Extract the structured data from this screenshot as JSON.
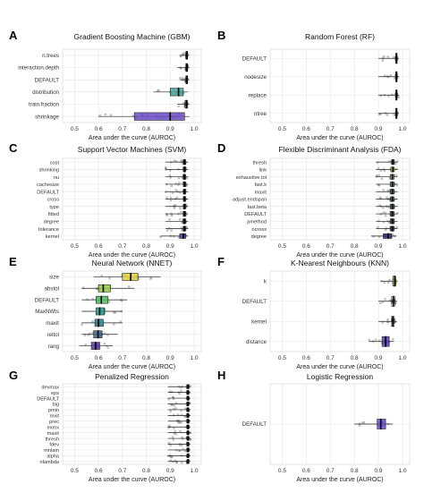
{
  "figure": {
    "xlabel": "Area under the curve (AUROC)",
    "colors": {
      "tick_color": "#333333",
      "grid_color": "#e6e6e6",
      "point_color": "#555555",
      "median_color": "#000000"
    }
  },
  "chart_data": [
    {
      "letter": "A",
      "type": "boxplot",
      "title": "Gradient Boosting Machine (GBM)",
      "xlabel": "Area under the curve (AUROC)",
      "xlim": [
        0.45,
        1.03
      ],
      "xticks": [
        0.5,
        0.6,
        0.7,
        0.8,
        0.9,
        1.0
      ],
      "grid": true,
      "categories": [
        "n.trees",
        "interaction.depth",
        "DEFAULT",
        "distribution",
        "train.fraction",
        "shrinkage"
      ],
      "boxes": [
        {
          "q1": 0.965,
          "median": 0.97,
          "q3": 0.973,
          "min": 0.94,
          "max": 0.98,
          "color": "#ffffff"
        },
        {
          "q1": 0.965,
          "median": 0.97,
          "q3": 0.973,
          "min": 0.93,
          "max": 0.98,
          "color": "#ffffff"
        },
        {
          "q1": 0.965,
          "median": 0.97,
          "q3": 0.973,
          "min": 0.94,
          "max": 0.98,
          "color": "#ffffff"
        },
        {
          "q1": 0.9,
          "median": 0.935,
          "q3": 0.955,
          "min": 0.83,
          "max": 0.975,
          "color": "#4aa6a1"
        },
        {
          "q1": 0.962,
          "median": 0.968,
          "q3": 0.973,
          "min": 0.93,
          "max": 0.98,
          "color": "#ffffff"
        },
        {
          "q1": 0.75,
          "median": 0.9,
          "q3": 0.96,
          "min": 0.6,
          "max": 0.98,
          "color": "#6b4bc4"
        }
      ]
    },
    {
      "letter": "B",
      "type": "boxplot",
      "title": "Random Forest (RF)",
      "xlabel": "Area under the curve (AUROC)",
      "xlim": [
        0.45,
        1.03
      ],
      "xticks": [
        0.5,
        0.6,
        0.7,
        0.8,
        0.9,
        1.0
      ],
      "grid": true,
      "categories": [
        "DEFAULT",
        "nodesize",
        "replace",
        "ntree"
      ],
      "boxes": [
        {
          "q1": 0.972,
          "median": 0.975,
          "q3": 0.978,
          "min": 0.9,
          "max": 0.985,
          "color": "#ffffff"
        },
        {
          "q1": 0.972,
          "median": 0.975,
          "q3": 0.978,
          "min": 0.9,
          "max": 0.985,
          "color": "#ffffff"
        },
        {
          "q1": 0.972,
          "median": 0.975,
          "q3": 0.978,
          "min": 0.9,
          "max": 0.985,
          "color": "#ffffff"
        },
        {
          "q1": 0.972,
          "median": 0.975,
          "q3": 0.978,
          "min": 0.9,
          "max": 0.985,
          "color": "#ffffff"
        }
      ]
    },
    {
      "letter": "C",
      "type": "boxplot",
      "title": "Support Vector Machines (SVM)",
      "xlabel": "Area under the curve (AUROC)",
      "xlim": [
        0.45,
        1.03
      ],
      "xticks": [
        0.5,
        0.6,
        0.7,
        0.8,
        0.9,
        1.0
      ],
      "grid": true,
      "categories": [
        "cost",
        "shrinking",
        "nu",
        "cachesize",
        "DEFAULT",
        "cross",
        "type",
        "fitted",
        "degree",
        "tolerance",
        "kernel"
      ],
      "boxes": [
        {
          "q1": 0.955,
          "median": 0.96,
          "q3": 0.965,
          "min": 0.88,
          "max": 0.975,
          "color": "#ffffff"
        },
        {
          "q1": 0.955,
          "median": 0.96,
          "q3": 0.965,
          "min": 0.88,
          "max": 0.975,
          "color": "#ffffff"
        },
        {
          "q1": 0.955,
          "median": 0.96,
          "q3": 0.965,
          "min": 0.88,
          "max": 0.975,
          "color": "#ffffff"
        },
        {
          "q1": 0.955,
          "median": 0.96,
          "q3": 0.965,
          "min": 0.88,
          "max": 0.975,
          "color": "#ffffff"
        },
        {
          "q1": 0.955,
          "median": 0.96,
          "q3": 0.965,
          "min": 0.88,
          "max": 0.975,
          "color": "#ffffff"
        },
        {
          "q1": 0.955,
          "median": 0.96,
          "q3": 0.965,
          "min": 0.88,
          "max": 0.975,
          "color": "#ffffff"
        },
        {
          "q1": 0.955,
          "median": 0.96,
          "q3": 0.965,
          "min": 0.88,
          "max": 0.975,
          "color": "#ffffff"
        },
        {
          "q1": 0.955,
          "median": 0.96,
          "q3": 0.965,
          "min": 0.88,
          "max": 0.975,
          "color": "#ffffff"
        },
        {
          "q1": 0.955,
          "median": 0.96,
          "q3": 0.965,
          "min": 0.88,
          "max": 0.975,
          "color": "#ffffff"
        },
        {
          "q1": 0.955,
          "median": 0.96,
          "q3": 0.965,
          "min": 0.88,
          "max": 0.975,
          "color": "#ffffff"
        },
        {
          "q1": 0.94,
          "median": 0.955,
          "q3": 0.965,
          "min": 0.86,
          "max": 0.975,
          "color": "#4b4ba8"
        }
      ]
    },
    {
      "letter": "D",
      "type": "boxplot",
      "title": "Flexible Discriminant Analysis (FDA)",
      "xlabel": "Area under the curve (AUROC)",
      "xlim": [
        0.45,
        1.03
      ],
      "xticks": [
        0.5,
        0.6,
        0.7,
        0.8,
        0.9,
        1.0
      ],
      "grid": true,
      "categories": [
        "thresh",
        "link",
        "exhaustive.tol",
        "fast.k",
        "maxit",
        "adjust.endspan",
        "fast.beta",
        "DEFAULT",
        "pmethod",
        "ncross",
        "degree"
      ],
      "boxes": [
        {
          "q1": 0.955,
          "median": 0.96,
          "q3": 0.965,
          "min": 0.89,
          "max": 0.98,
          "color": "#ffffff"
        },
        {
          "q1": 0.952,
          "median": 0.96,
          "q3": 0.966,
          "min": 0.89,
          "max": 0.98,
          "color": "#d7dd2a"
        },
        {
          "q1": 0.95,
          "median": 0.958,
          "q3": 0.965,
          "min": 0.89,
          "max": 0.98,
          "color": "#8fcf4a"
        },
        {
          "q1": 0.95,
          "median": 0.958,
          "q3": 0.965,
          "min": 0.89,
          "max": 0.98,
          "color": "#3bb07a"
        },
        {
          "q1": 0.95,
          "median": 0.958,
          "q3": 0.965,
          "min": 0.89,
          "max": 0.98,
          "color": "#2a9a86"
        },
        {
          "q1": 0.95,
          "median": 0.958,
          "q3": 0.965,
          "min": 0.89,
          "max": 0.98,
          "color": "#2b8a8b"
        },
        {
          "q1": 0.95,
          "median": 0.958,
          "q3": 0.965,
          "min": 0.89,
          "max": 0.98,
          "color": "#2e7a8d"
        },
        {
          "q1": 0.95,
          "median": 0.958,
          "q3": 0.965,
          "min": 0.89,
          "max": 0.98,
          "color": "#34698d"
        },
        {
          "q1": 0.95,
          "median": 0.958,
          "q3": 0.965,
          "min": 0.89,
          "max": 0.98,
          "color": "#3b598c"
        },
        {
          "q1": 0.95,
          "median": 0.958,
          "q3": 0.965,
          "min": 0.89,
          "max": 0.98,
          "color": "#44468a"
        },
        {
          "q1": 0.92,
          "median": 0.94,
          "q3": 0.955,
          "min": 0.87,
          "max": 0.975,
          "color": "#482878"
        }
      ]
    },
    {
      "letter": "E",
      "type": "boxplot",
      "title": "Neural Network (NNET)",
      "xlabel": "Area under the curve (AUROC)",
      "xlim": [
        0.45,
        1.03
      ],
      "xticks": [
        0.5,
        0.6,
        0.7,
        0.8,
        0.9,
        1.0
      ],
      "grid": true,
      "categories": [
        "size",
        "abstol",
        "DEFAULT",
        "MaxNWts",
        "maxit",
        "reltol",
        "rang"
      ],
      "boxes": [
        {
          "q1": 0.7,
          "median": 0.735,
          "q3": 0.765,
          "min": 0.58,
          "max": 0.86,
          "color": "#e3d23a"
        },
        {
          "q1": 0.6,
          "median": 0.62,
          "q3": 0.65,
          "min": 0.53,
          "max": 0.75,
          "color": "#9bd14b"
        },
        {
          "q1": 0.59,
          "median": 0.612,
          "q3": 0.64,
          "min": 0.53,
          "max": 0.72,
          "color": "#5cc46a"
        },
        {
          "q1": 0.59,
          "median": 0.605,
          "q3": 0.625,
          "min": 0.53,
          "max": 0.7,
          "color": "#2da59a"
        },
        {
          "q1": 0.585,
          "median": 0.6,
          "q3": 0.62,
          "min": 0.53,
          "max": 0.7,
          "color": "#2e8a8f"
        },
        {
          "q1": 0.58,
          "median": 0.598,
          "q3": 0.615,
          "min": 0.53,
          "max": 0.68,
          "color": "#3d6c92"
        },
        {
          "q1": 0.57,
          "median": 0.588,
          "q3": 0.605,
          "min": 0.52,
          "max": 0.66,
          "color": "#5b3fb0"
        }
      ]
    },
    {
      "letter": "F",
      "type": "boxplot",
      "title": "K-Nearest Neighbours (KNN)",
      "xlabel": "Area under the curve (AUROC)",
      "xlim": [
        0.45,
        1.03
      ],
      "xticks": [
        0.5,
        0.6,
        0.7,
        0.8,
        0.9,
        1.0
      ],
      "grid": true,
      "categories": [
        "k",
        "DEFAULT",
        "kernel",
        "distance"
      ],
      "boxes": [
        {
          "q1": 0.96,
          "median": 0.968,
          "q3": 0.972,
          "min": 0.91,
          "max": 0.98,
          "color": "#d9d92a"
        },
        {
          "q1": 0.955,
          "median": 0.962,
          "q3": 0.968,
          "min": 0.9,
          "max": 0.978,
          "color": "#ffffff"
        },
        {
          "q1": 0.955,
          "median": 0.96,
          "q3": 0.966,
          "min": 0.9,
          "max": 0.975,
          "color": "#ffffff"
        },
        {
          "q1": 0.915,
          "median": 0.93,
          "q3": 0.945,
          "min": 0.86,
          "max": 0.965,
          "color": "#5a3fb0"
        }
      ]
    },
    {
      "letter": "G",
      "type": "boxplot",
      "title": "Penalized Regression",
      "xlabel": "Area under the curve (AUROC)",
      "xlim": [
        0.45,
        1.03
      ],
      "xticks": [
        0.5,
        0.6,
        0.7,
        0.8,
        0.9,
        1.0
      ],
      "grid": true,
      "categories": [
        "devmax",
        "eps",
        "DEFAULT",
        "big",
        "pmin",
        "mxit",
        "prec",
        "exmx",
        "maxit",
        "thresh",
        "fdev",
        "mnlam",
        "alpha",
        "nlambda"
      ],
      "boxes": [
        {
          "q1": 0.97,
          "median": 0.975,
          "q3": 0.978,
          "min": 0.89,
          "max": 0.985,
          "color": "#ffffff"
        },
        {
          "q1": 0.97,
          "median": 0.975,
          "q3": 0.978,
          "min": 0.89,
          "max": 0.985,
          "color": "#ffffff"
        },
        {
          "q1": 0.97,
          "median": 0.975,
          "q3": 0.978,
          "min": 0.89,
          "max": 0.985,
          "color": "#ffffff"
        },
        {
          "q1": 0.97,
          "median": 0.975,
          "q3": 0.978,
          "min": 0.89,
          "max": 0.985,
          "color": "#ffffff"
        },
        {
          "q1": 0.97,
          "median": 0.975,
          "q3": 0.978,
          "min": 0.89,
          "max": 0.985,
          "color": "#ffffff"
        },
        {
          "q1": 0.97,
          "median": 0.975,
          "q3": 0.978,
          "min": 0.89,
          "max": 0.985,
          "color": "#ffffff"
        },
        {
          "q1": 0.97,
          "median": 0.975,
          "q3": 0.978,
          "min": 0.89,
          "max": 0.985,
          "color": "#ffffff"
        },
        {
          "q1": 0.97,
          "median": 0.975,
          "q3": 0.978,
          "min": 0.89,
          "max": 0.985,
          "color": "#ffffff"
        },
        {
          "q1": 0.97,
          "median": 0.975,
          "q3": 0.978,
          "min": 0.89,
          "max": 0.985,
          "color": "#ffffff"
        },
        {
          "q1": 0.97,
          "median": 0.975,
          "q3": 0.978,
          "min": 0.89,
          "max": 0.985,
          "color": "#ffffff"
        },
        {
          "q1": 0.97,
          "median": 0.975,
          "q3": 0.978,
          "min": 0.89,
          "max": 0.985,
          "color": "#ffffff"
        },
        {
          "q1": 0.97,
          "median": 0.975,
          "q3": 0.978,
          "min": 0.89,
          "max": 0.985,
          "color": "#ffffff"
        },
        {
          "q1": 0.97,
          "median": 0.975,
          "q3": 0.978,
          "min": 0.89,
          "max": 0.985,
          "color": "#ffffff"
        },
        {
          "q1": 0.97,
          "median": 0.975,
          "q3": 0.978,
          "min": 0.89,
          "max": 0.985,
          "color": "#ffffff"
        }
      ]
    },
    {
      "letter": "H",
      "type": "boxplot",
      "title": "Logistic Regression",
      "xlabel": "Area under the curve (AUROC)",
      "xlim": [
        0.45,
        1.03
      ],
      "xticks": [
        0.5,
        0.6,
        0.7,
        0.8,
        0.9,
        1.0
      ],
      "grid": true,
      "categories": [
        "DEFAULT"
      ],
      "boxes": [
        {
          "q1": 0.895,
          "median": 0.91,
          "q3": 0.93,
          "min": 0.8,
          "max": 0.96,
          "color": "#6b4bc4"
        }
      ]
    }
  ]
}
